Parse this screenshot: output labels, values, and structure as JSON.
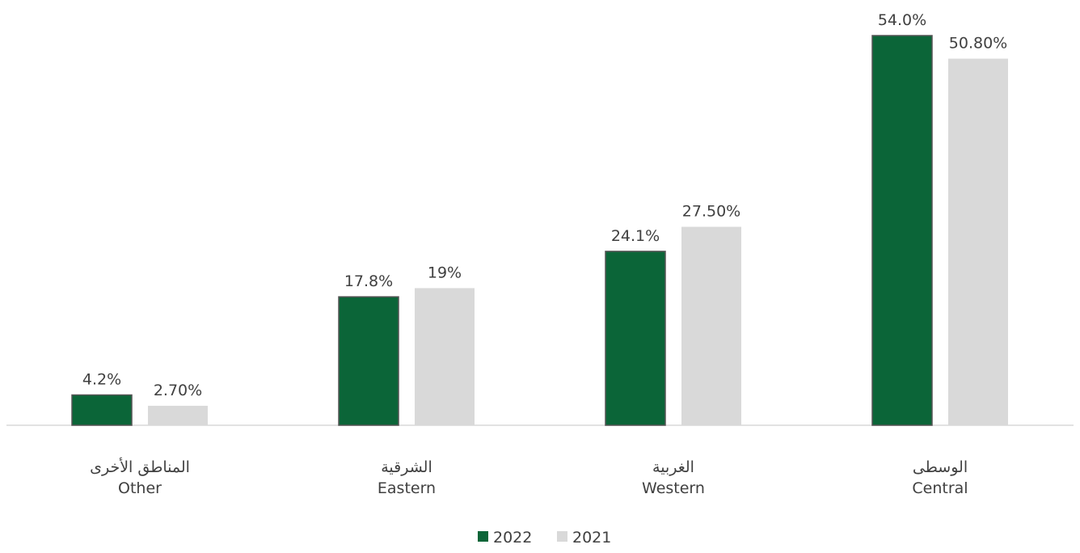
{
  "chart_data": {
    "type": "bar",
    "categories": [
      {
        "ar": "المناطق الأخرى",
        "en": "Other"
      },
      {
        "ar": "الشرقية",
        "en": "Eastern"
      },
      {
        "ar": "الغربية",
        "en": "Western"
      },
      {
        "ar": "الوسطى",
        "en": "Central"
      }
    ],
    "series": [
      {
        "name": "2022",
        "color": "#0b6538",
        "values": [
          4.2,
          17.8,
          24.1,
          54.0
        ],
        "labels": [
          "4.2%",
          "17.8%",
          "24.1%",
          "54.0%"
        ]
      },
      {
        "name": "2021",
        "color": "#d9d9d9",
        "values": [
          2.7,
          19,
          27.5,
          50.8
        ],
        "labels": [
          "2.70%",
          "19%",
          "27.50%",
          "50.80%"
        ]
      }
    ],
    "ylim": [
      0,
      54
    ],
    "grid": false,
    "legend_position": "bottom"
  }
}
